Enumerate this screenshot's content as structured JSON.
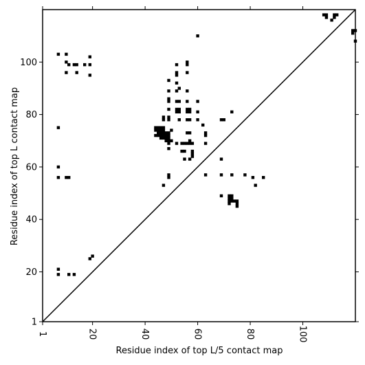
{
  "chart_data": {
    "type": "scatter",
    "title": "",
    "xlabel": "Residue index of top L/5 contact map",
    "ylabel": "Residue index of top L contact map",
    "xlim": [
      1,
      120
    ],
    "ylim": [
      1,
      120
    ],
    "x_ticks": [
      1,
      20,
      40,
      60,
      80,
      100
    ],
    "y_ticks": [
      1,
      20,
      40,
      60,
      80,
      100
    ],
    "x_tick_labels": [
      "1",
      "20",
      "40",
      "60",
      "80",
      "100"
    ],
    "y_tick_labels": [
      "1",
      "20",
      "40",
      "60",
      "80",
      "100"
    ],
    "grid": false,
    "diagonal_line": true,
    "marker": "square",
    "marker_color": "#000000",
    "points": [
      [
        7,
        103
      ],
      [
        10,
        103
      ],
      [
        19,
        102
      ],
      [
        10,
        100
      ],
      [
        11,
        99
      ],
      [
        13,
        99
      ],
      [
        14,
        99
      ],
      [
        17,
        99
      ],
      [
        19,
        99
      ],
      [
        10,
        96
      ],
      [
        14,
        96
      ],
      [
        19,
        95
      ],
      [
        60,
        110
      ],
      [
        108,
        118
      ],
      [
        109,
        118
      ],
      [
        109,
        117
      ],
      [
        111,
        116
      ],
      [
        112,
        118
      ],
      [
        113,
        118
      ],
      [
        112,
        117
      ],
      [
        119,
        112
      ],
      [
        120,
        112
      ],
      [
        119,
        111
      ],
      [
        120,
        108
      ],
      [
        52,
        99
      ],
      [
        56,
        100
      ],
      [
        56,
        99
      ],
      [
        52,
        96
      ],
      [
        52,
        95
      ],
      [
        56,
        96
      ],
      [
        49,
        93
      ],
      [
        52,
        92
      ],
      [
        53,
        90
      ],
      [
        49,
        89
      ],
      [
        52,
        89
      ],
      [
        56,
        89
      ],
      [
        49,
        86
      ],
      [
        49,
        85
      ],
      [
        52,
        85
      ],
      [
        53,
        85
      ],
      [
        56,
        85
      ],
      [
        60,
        85
      ],
      [
        49,
        82
      ],
      [
        52,
        82
      ],
      [
        53,
        82
      ],
      [
        56,
        82
      ],
      [
        57,
        82
      ],
      [
        52,
        81
      ],
      [
        53,
        81
      ],
      [
        56,
        81
      ],
      [
        57,
        81
      ],
      [
        60,
        81
      ],
      [
        47,
        79
      ],
      [
        49,
        79
      ],
      [
        47,
        78
      ],
      [
        49,
        78
      ],
      [
        53,
        78
      ],
      [
        56,
        78
      ],
      [
        57,
        78
      ],
      [
        60,
        78
      ],
      [
        69,
        78
      ],
      [
        70,
        78
      ],
      [
        73,
        81
      ],
      [
        62,
        76
      ],
      [
        44,
        75
      ],
      [
        45,
        75
      ],
      [
        46,
        75
      ],
      [
        47,
        75
      ],
      [
        44,
        74
      ],
      [
        45,
        74
      ],
      [
        46,
        74
      ],
      [
        47,
        74
      ],
      [
        50,
        74
      ],
      [
        45,
        73
      ],
      [
        46,
        73
      ],
      [
        47,
        73
      ],
      [
        48,
        73
      ],
      [
        49,
        73
      ],
      [
        56,
        73
      ],
      [
        57,
        73
      ],
      [
        63,
        73
      ],
      [
        44,
        72
      ],
      [
        45,
        72
      ],
      [
        46,
        72
      ],
      [
        47,
        72
      ],
      [
        48,
        72
      ],
      [
        49,
        72
      ],
      [
        63,
        72
      ],
      [
        46,
        71
      ],
      [
        47,
        71
      ],
      [
        48,
        71
      ],
      [
        49,
        71
      ],
      [
        48,
        70
      ],
      [
        49,
        70
      ],
      [
        50,
        70
      ],
      [
        57,
        70
      ],
      [
        49,
        69
      ],
      [
        52,
        69
      ],
      [
        54,
        69
      ],
      [
        55,
        69
      ],
      [
        56,
        69
      ],
      [
        57,
        69
      ],
      [
        58,
        69
      ],
      [
        63,
        69
      ],
      [
        49,
        67
      ],
      [
        54,
        66
      ],
      [
        55,
        66
      ],
      [
        58,
        66
      ],
      [
        58,
        65
      ],
      [
        58,
        64
      ],
      [
        55,
        63
      ],
      [
        57,
        63
      ],
      [
        69,
        63
      ],
      [
        7,
        75
      ],
      [
        7,
        60
      ],
      [
        7,
        56
      ],
      [
        10,
        56
      ],
      [
        11,
        56
      ],
      [
        47,
        53
      ],
      [
        49,
        57
      ],
      [
        49,
        56
      ],
      [
        63,
        57
      ],
      [
        69,
        57
      ],
      [
        73,
        57
      ],
      [
        78,
        57
      ],
      [
        81,
        56
      ],
      [
        85,
        56
      ],
      [
        82,
        53
      ],
      [
        69,
        49
      ],
      [
        72,
        49
      ],
      [
        73,
        49
      ],
      [
        72,
        48
      ],
      [
        73,
        48
      ],
      [
        72,
        47
      ],
      [
        73,
        47
      ],
      [
        74,
        47
      ],
      [
        75,
        47
      ],
      [
        72,
        46
      ],
      [
        75,
        46
      ],
      [
        75,
        45
      ],
      [
        7,
        21
      ],
      [
        7,
        19
      ],
      [
        11,
        19
      ],
      [
        13,
        19
      ],
      [
        19,
        25
      ],
      [
        20,
        26
      ]
    ]
  }
}
